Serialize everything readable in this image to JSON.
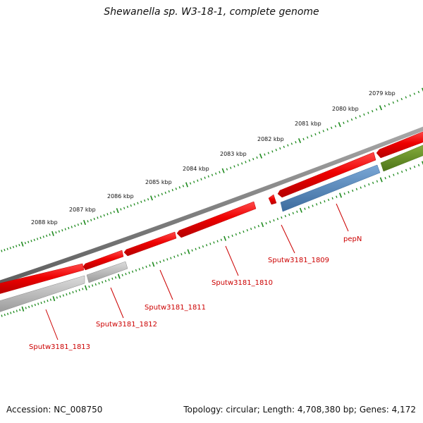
{
  "title": "Shewanella sp. W3-18-1, complete genome",
  "footer": {
    "accession": "Accession: NC_008750",
    "summary": "Topology: circular; Length: 4,708,380 bp; Genes: 4,172"
  },
  "ruler": {
    "labels": [
      "2079 kbp",
      "2080 kbp",
      "2081 kbp",
      "2082 kbp",
      "2083 kbp",
      "2084 kbp",
      "2085 kbp",
      "2086 kbp",
      "2087 kbp",
      "2088 kbp"
    ]
  },
  "genes": [
    {
      "name": "pepN",
      "color": "#4f7fb2",
      "track": "reverse"
    },
    {
      "name": "Sputw3181_1809",
      "color": "#e00000",
      "track": "forward"
    },
    {
      "name": "Sputw3181_1810",
      "color": "#e00000",
      "track": "forward"
    },
    {
      "name": "Sputw3181_1811",
      "color": "#e00000",
      "track": "forward"
    },
    {
      "name": "Sputw3181_1812",
      "color": "#e00000",
      "track": "forward"
    },
    {
      "name": "Sputw3181_1813",
      "color": "#e00000",
      "track": "forward"
    }
  ],
  "colors": {
    "forward_gene": "#e00000",
    "reverse_gene_gray": "#b4b4b4",
    "reverse_gene_blue": "#4f7fb2",
    "reverse_gene_green": "#5f8a20",
    "backbone": "#7a7a7a",
    "ticks": "#1e8a1e"
  }
}
